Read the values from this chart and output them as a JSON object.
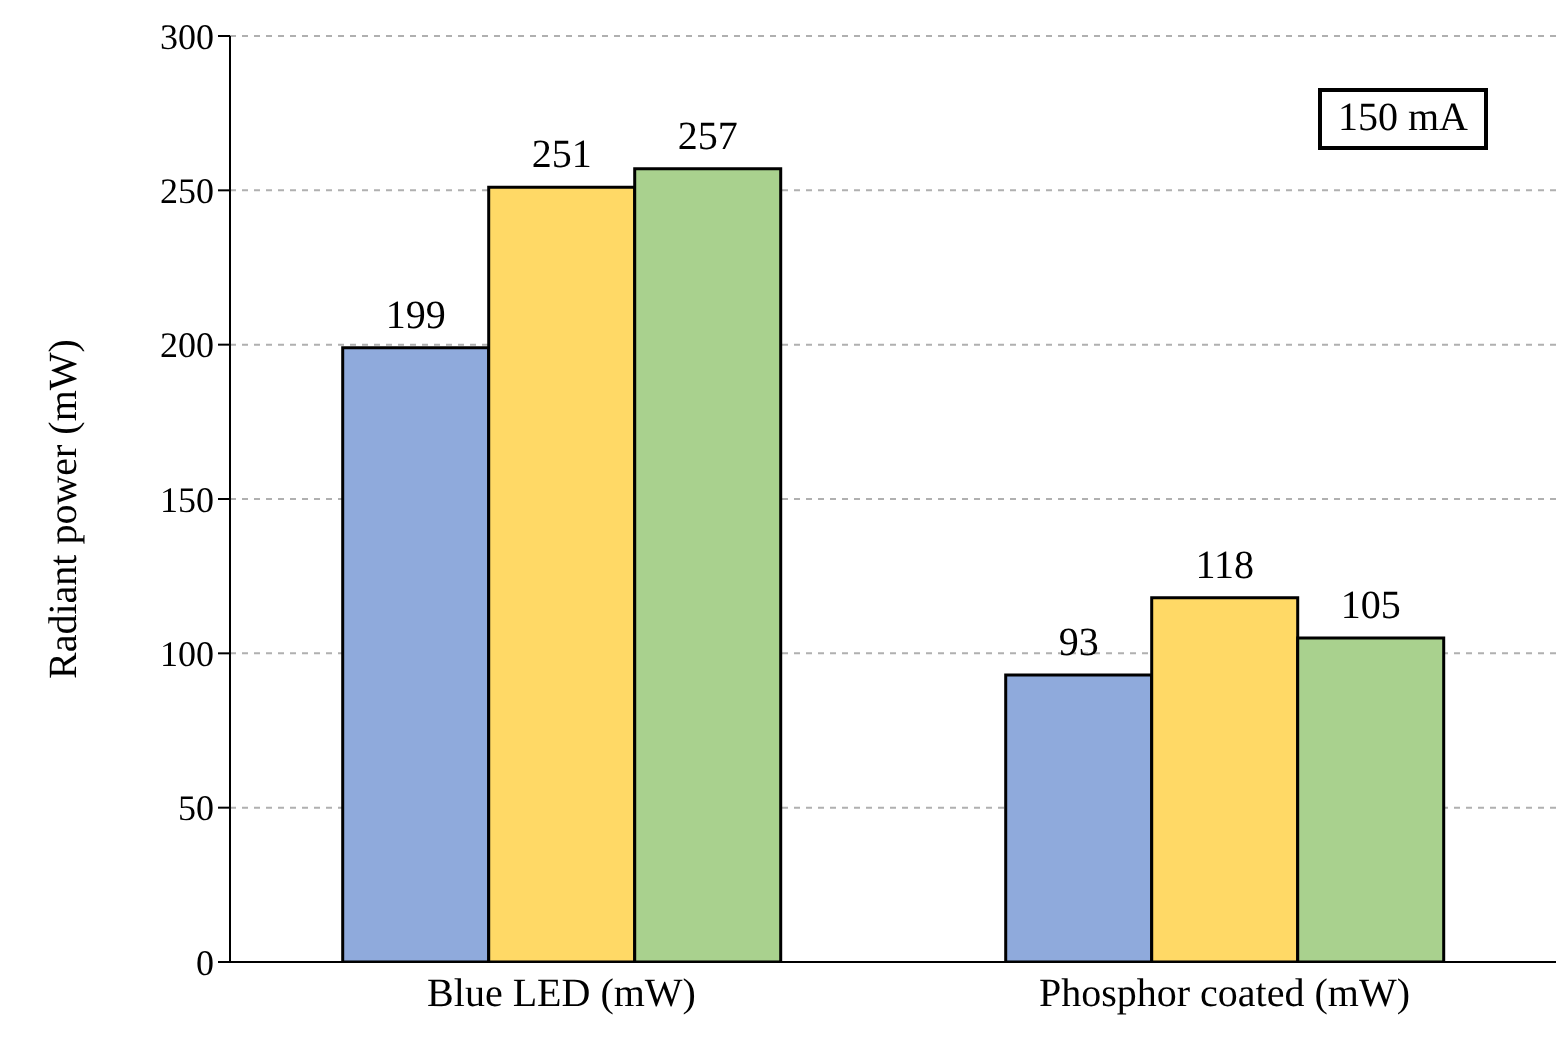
{
  "chart_data": {
    "type": "bar",
    "categories": [
      "Blue LED (mW)",
      "Phosphor coated (mW)"
    ],
    "series": [
      {
        "color": "#8faadc",
        "values": [
          199,
          93
        ]
      },
      {
        "color": "#ffd966",
        "values": [
          251,
          118
        ]
      },
      {
        "color": "#a9d18e",
        "values": [
          257,
          105
        ]
      }
    ],
    "ylabel": "Radiant power (mW)",
    "ylim": [
      0,
      300
    ],
    "yticks": [
      0,
      50,
      100,
      150,
      200,
      250,
      300
    ],
    "grid": "y",
    "data_labels": true,
    "legend": false,
    "annotations": [
      "150 mA"
    ]
  }
}
